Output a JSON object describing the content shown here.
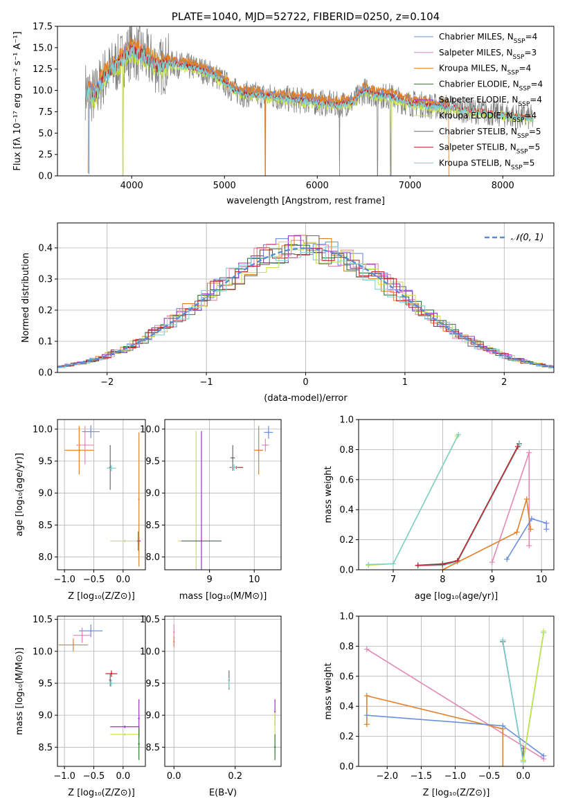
{
  "colors": {
    "chabrier_miles": "#6b8ee0",
    "salpeter_miles": "#e487b4",
    "kroupa_miles": "#e0802a",
    "chabrier_elodie": "#2a7a2a",
    "salpeter_elodie": "#9b30c8",
    "kroupa_elodie": "#c8e44a",
    "chabrier_stelib": "#6a6a6a",
    "salpeter_stelib": "#c0242a",
    "kroupa_stelib": "#7fd0d0",
    "normal": "#5b8bd8",
    "data": "#808080"
  },
  "chart_data": [
    {
      "id": "spectrum",
      "type": "line",
      "title": "PLATE=1040, MJD=52722, FIBERID=0250, z=0.104",
      "xlabel": "wavelength [Angstrom, rest frame]",
      "ylabel": "Flux [fλ 10⁻¹⁷ erg cm⁻² s⁻¹ A⁻¹]",
      "xlim": [
        3200,
        8550
      ],
      "ylim": [
        0,
        17.5
      ],
      "xticks": [
        4000,
        5000,
        6000,
        7000,
        8000
      ],
      "yticks": [
        0.0,
        2.5,
        5.0,
        7.5,
        10.0,
        12.5,
        15.0,
        17.5
      ],
      "legend_position": "top-right",
      "legend": [
        {
          "key": "chabrier_miles",
          "label": "Chabrier MILES, N",
          "sub": "SSP",
          "tail": "=4"
        },
        {
          "key": "salpeter_miles",
          "label": "Salpeter MILES, N",
          "sub": "SSP",
          "tail": "=3"
        },
        {
          "key": "kroupa_miles",
          "label": "Kroupa MILES, N",
          "sub": "SSP",
          "tail": "=4"
        },
        {
          "key": "chabrier_elodie",
          "label": "Chabrier ELODIE, N",
          "sub": "SSP",
          "tail": "=4"
        },
        {
          "key": "salpeter_elodie",
          "label": "Salpeter ELODIE, N",
          "sub": "SSP",
          "tail": "=4"
        },
        {
          "key": "kroupa_elodie",
          "label": "Kroupa ELODIE, N",
          "sub": "SSP",
          "tail": "=4"
        },
        {
          "key": "chabrier_stelib",
          "label": "Chabrier STELIB, N",
          "sub": "SSP",
          "tail": "=5"
        },
        {
          "key": "salpeter_stelib",
          "label": "Salpeter STELIB, N",
          "sub": "SSP",
          "tail": "=5"
        },
        {
          "key": "kroupa_stelib",
          "label": "Kroupa STELIB, N",
          "sub": "SSP",
          "tail": "=5"
        }
      ],
      "continuum": [
        [
          3500,
          10.0
        ],
        [
          3600,
          9.3
        ],
        [
          3700,
          11.6
        ],
        [
          3800,
          12.6
        ],
        [
          3900,
          13.6
        ],
        [
          4000,
          14.8
        ],
        [
          4100,
          14.2
        ],
        [
          4200,
          13.5
        ],
        [
          4300,
          12.7
        ],
        [
          4400,
          13.2
        ],
        [
          4500,
          13.0
        ],
        [
          4600,
          12.8
        ],
        [
          4700,
          12.6
        ],
        [
          4800,
          12.2
        ],
        [
          4900,
          11.8
        ],
        [
          5000,
          10.9
        ],
        [
          5100,
          10.0
        ],
        [
          5200,
          9.6
        ],
        [
          5300,
          9.5
        ],
        [
          5400,
          9.4
        ],
        [
          5500,
          9.3
        ],
        [
          5600,
          9.1
        ],
        [
          5700,
          9.0
        ],
        [
          5800,
          8.8
        ],
        [
          5900,
          8.8
        ],
        [
          6000,
          8.6
        ],
        [
          6100,
          8.5
        ],
        [
          6200,
          8.3
        ],
        [
          6300,
          8.5
        ],
        [
          6400,
          8.7
        ],
        [
          6500,
          10.0
        ],
        [
          6600,
          9.6
        ],
        [
          6700,
          9.4
        ],
        [
          6800,
          9.3
        ],
        [
          6900,
          8.8
        ],
        [
          7000,
          8.5
        ],
        [
          7100,
          8.4
        ],
        [
          7200,
          8.2
        ],
        [
          7300,
          8.1
        ],
        [
          7400,
          8.0
        ],
        [
          7500,
          7.9
        ],
        [
          7600,
          7.7
        ],
        [
          7700,
          7.6
        ],
        [
          7800,
          7.5
        ],
        [
          7900,
          7.3
        ],
        [
          8000,
          7.2
        ],
        [
          8100,
          7.0
        ],
        [
          8200,
          6.9
        ],
        [
          8300,
          6.8
        ],
        [
          8330,
          6.7
        ]
      ]
    },
    {
      "id": "residuals",
      "type": "line",
      "xlabel": "(data-model)/error",
      "ylabel": "Normed distribution",
      "xlim": [
        -2.5,
        2.5
      ],
      "ylim": [
        0,
        0.48
      ],
      "xticks": [
        -2,
        -1,
        0,
        1,
        2
      ],
      "yticks": [
        0.0,
        0.1,
        0.2,
        0.3,
        0.4
      ],
      "legend_position": "top-right",
      "legend_label": "𝒩(0, 1)"
    },
    {
      "id": "age_vs_Z",
      "type": "scatter",
      "xlabel": "Z [log₁₀(Z/Z⊙)]",
      "ylabel": "age  [log₁₀(age/yr)]",
      "xlim": [
        -1.12,
        0.38
      ],
      "ylim": [
        7.8,
        10.15
      ],
      "xticks": [
        -1.0,
        -0.5,
        0.0
      ],
      "yticks": [
        8.0,
        8.5,
        9.0,
        9.5,
        10.0
      ],
      "points": [
        {
          "key": "kroupa_miles",
          "x": -0.75,
          "y": 9.67,
          "xerr": 0.25,
          "yerr": 0.38
        },
        {
          "key": "salpeter_miles",
          "x": -0.65,
          "y": 9.75,
          "xerr": 0.15,
          "yerr": 0.3
        },
        {
          "key": "chabrier_miles",
          "x": -0.55,
          "y": 9.96,
          "xerr": 0.15,
          "yerr": 0.1
        },
        {
          "key": "chabrier_stelib",
          "x": -0.22,
          "y": 9.4,
          "xerr": 0.02,
          "yerr": 0.35
        },
        {
          "key": "kroupa_stelib",
          "x": -0.2,
          "y": 9.39,
          "xerr": 0.08,
          "yerr": 0.05
        },
        {
          "key": "chabrier_elodie",
          "x": 0.26,
          "y": 8.25,
          "xerr": 0.02,
          "yerr": 0.15
        },
        {
          "key": "kroupa_elodie",
          "x": 0.03,
          "y": 8.25,
          "xerr": 0.25,
          "yerr": 0.02
        },
        {
          "key": "salpeter_elodie",
          "x": 0.27,
          "y": 8.25,
          "xerr": 0.03,
          "yerr": 0.06
        },
        {
          "key": "kroupa_miles",
          "x": 0.27,
          "y": 8.9,
          "xerr": 0.01,
          "yerr": 1.05
        }
      ]
    },
    {
      "id": "age_vs_mass",
      "type": "scatter",
      "xlabel": "mass [log₁₀(M/M⊙)]",
      "ylabel": "",
      "xlim": [
        8.0,
        10.6
      ],
      "ylim": [
        7.8,
        10.15
      ],
      "xticks": [
        9,
        10
      ],
      "yticks": [
        8.0,
        8.5,
        9.0,
        9.5,
        10.0
      ],
      "points": [
        {
          "key": "kroupa_elodie",
          "x": 8.7,
          "y": 8.25,
          "xerr": 0.4,
          "yerr": 1.72
        },
        {
          "key": "salpeter_elodie",
          "x": 8.82,
          "y": 8.25,
          "xerr": 0.45,
          "yerr": 1.72
        },
        {
          "key": "chabrier_stelib",
          "x": 9.52,
          "y": 9.55,
          "xerr": 0.05,
          "yerr": 0.2
        },
        {
          "key": "salpeter_stelib",
          "x": 9.6,
          "y": 9.4,
          "xerr": 0.15,
          "yerr": 0.02
        },
        {
          "key": "kroupa_stelib",
          "x": 9.55,
          "y": 9.4,
          "xerr": 0.08,
          "yerr": 0.05
        },
        {
          "key": "kroupa_miles",
          "x": 10.1,
          "y": 9.67,
          "xerr": 0.1,
          "yerr": 0.38
        },
        {
          "key": "salpeter_miles",
          "x": 10.25,
          "y": 9.75,
          "xerr": 0.08,
          "yerr": 0.1
        },
        {
          "key": "chabrier_miles",
          "x": 10.32,
          "y": 9.95,
          "xerr": 0.1,
          "yerr": 0.1
        }
      ]
    },
    {
      "id": "massweight_vs_age",
      "type": "line",
      "xlabel": "age  [log₁₀(age/yr)]",
      "ylabel": "mass weight",
      "xlim": [
        6.3,
        10.25
      ],
      "ylim": [
        0,
        1.0
      ],
      "xticks": [
        7,
        8,
        9,
        10
      ],
      "yticks": [
        0.0,
        0.2,
        0.4,
        0.6,
        0.8,
        1.0
      ],
      "series": [
        {
          "key": "kroupa_elodie",
          "x": [
            6.5,
            7.0,
            8.3
          ],
          "y": [
            0.03,
            0.04,
            0.89
          ]
        },
        {
          "key": "kroupa_stelib",
          "x": [
            6.5,
            7.0,
            8.32
          ],
          "y": [
            0.035,
            0.04,
            0.9
          ]
        },
        {
          "key": "chabrier_stelib",
          "x": [
            7.5,
            8.0,
            8.3,
            9.55
          ],
          "y": [
            0.03,
            0.04,
            0.06,
            0.84
          ]
        },
        {
          "key": "kroupa_stelib",
          "x": [
            7.5,
            8.0,
            8.3,
            9.55
          ],
          "y": [
            0.025,
            0.03,
            0.05,
            0.83
          ]
        },
        {
          "key": "salpeter_stelib",
          "x": [
            7.5,
            8.0,
            8.3,
            9.52
          ],
          "y": [
            0.03,
            0.035,
            0.06,
            0.82
          ]
        },
        {
          "key": "salpeter_miles",
          "x": [
            9.0,
            9.75,
            9.75
          ],
          "y": [
            0.05,
            0.78,
            0.16
          ]
        },
        {
          "key": "kroupa_miles",
          "x": [
            8.0,
            9.5,
            9.7,
            9.78
          ],
          "y": [
            0.0,
            0.25,
            0.47,
            0.27
          ]
        },
        {
          "key": "chabrier_miles",
          "x": [
            9.3,
            9.8,
            10.1,
            10.1
          ],
          "y": [
            0.07,
            0.34,
            0.31,
            0.27
          ]
        }
      ]
    },
    {
      "id": "mass_vs_Z",
      "type": "scatter",
      "xlabel": "Z [log₁₀(Z/Z⊙)]",
      "ylabel": "mass [log₁₀(M/M⊙)]",
      "xlim": [
        -1.12,
        0.38
      ],
      "ylim": [
        8.2,
        10.55
      ],
      "xticks": [
        -1.0,
        -0.5,
        0.0
      ],
      "yticks": [
        8.5,
        9.0,
        9.5,
        10.0,
        10.5
      ],
      "points": [
        {
          "key": "kroupa_miles",
          "x": -0.85,
          "y": 10.1,
          "xerr": 0.25,
          "yerr": 0.1
        },
        {
          "key": "salpeter_miles",
          "x": -0.7,
          "y": 10.25,
          "xerr": 0.15,
          "yerr": 0.12
        },
        {
          "key": "chabrier_miles",
          "x": -0.55,
          "y": 10.32,
          "xerr": 0.2,
          "yerr": 0.1
        },
        {
          "key": "salpeter_stelib",
          "x": -0.2,
          "y": 9.65,
          "xerr": 0.1,
          "yerr": 0.05
        },
        {
          "key": "chabrier_stelib",
          "x": -0.22,
          "y": 9.55,
          "xerr": 0.02,
          "yerr": 0.1
        },
        {
          "key": "kroupa_stelib",
          "x": -0.2,
          "y": 9.5,
          "xerr": 0.08,
          "yerr": 0.05
        },
        {
          "key": "salpeter_elodie",
          "x": 0.03,
          "y": 8.82,
          "xerr": 0.25,
          "yerr": 0.02
        },
        {
          "key": "kroupa_elodie",
          "x": 0.03,
          "y": 8.7,
          "xerr": 0.25,
          "yerr": 0.02
        },
        {
          "key": "salpeter_elodie",
          "x": 0.27,
          "y": 8.95,
          "xerr": 0.01,
          "yerr": 0.3
        },
        {
          "key": "chabrier_elodie",
          "x": 0.27,
          "y": 8.55,
          "xerr": 0.01,
          "yerr": 0.25
        }
      ]
    },
    {
      "id": "mass_vs_EBV",
      "type": "scatter",
      "xlabel": "E(B-V)",
      "ylabel": "",
      "xlim": [
        -0.03,
        0.35
      ],
      "ylim": [
        8.2,
        10.55
      ],
      "xticks": [
        0.0,
        0.2
      ],
      "yticks": [
        8.5,
        9.0,
        9.5,
        10.0,
        10.5
      ],
      "points": [
        {
          "key": "salpeter_miles",
          "x": 0.0,
          "y": 10.3,
          "xerr": 0.0,
          "yerr": 0.12
        },
        {
          "key": "kroupa_miles",
          "x": 0.0,
          "y": 10.15,
          "xerr": 0.0,
          "yerr": 0.08
        },
        {
          "key": "chabrier_stelib",
          "x": 0.18,
          "y": 9.55,
          "xerr": 0.0,
          "yerr": 0.15
        },
        {
          "key": "kroupa_stelib",
          "x": 0.18,
          "y": 9.5,
          "xerr": 0.0,
          "yerr": 0.08
        },
        {
          "key": "salpeter_elodie",
          "x": 0.33,
          "y": 9.05,
          "xerr": 0.0,
          "yerr": 0.2
        },
        {
          "key": "kroupa_elodie",
          "x": 0.33,
          "y": 8.85,
          "xerr": 0.0,
          "yerr": 0.2
        },
        {
          "key": "chabrier_elodie",
          "x": 0.33,
          "y": 8.5,
          "xerr": 0.0,
          "yerr": 0.2
        }
      ]
    },
    {
      "id": "massweight_vs_Z",
      "type": "line",
      "xlabel": "Z [log₁₀(Z/Z⊙)]",
      "ylabel": "mass weight",
      "xlim": [
        -2.42,
        0.45
      ],
      "ylim": [
        0,
        1.0
      ],
      "xticks": [
        -2.0,
        -1.5,
        -1.0,
        -0.5,
        0.0
      ],
      "yticks": [
        0.0,
        0.2,
        0.4,
        0.6,
        0.8,
        1.0
      ],
      "series": [
        {
          "key": "salpeter_miles",
          "x": [
            -2.3,
            0.3
          ],
          "y": [
            0.78,
            0.05
          ]
        },
        {
          "key": "kroupa_miles",
          "x": [
            -2.3,
            -2.3,
            -0.3,
            -0.3
          ],
          "y": [
            0.28,
            0.47,
            0.25,
            0.0
          ]
        },
        {
          "key": "chabrier_miles",
          "x": [
            -2.3,
            -0.3,
            0.3
          ],
          "y": [
            0.34,
            0.27,
            0.07
          ]
        },
        {
          "key": "chabrier_stelib",
          "x": [
            -0.3,
            0.0,
            0.0
          ],
          "y": [
            0.83,
            0.04,
            0.12
          ]
        },
        {
          "key": "kroupa_stelib",
          "x": [
            -0.3,
            0.0,
            0.3
          ],
          "y": [
            0.84,
            0.03,
            0.89
          ]
        },
        {
          "key": "kroupa_elodie",
          "x": [
            0.0,
            0.3
          ],
          "y": [
            0.04,
            0.9
          ]
        }
      ]
    }
  ]
}
